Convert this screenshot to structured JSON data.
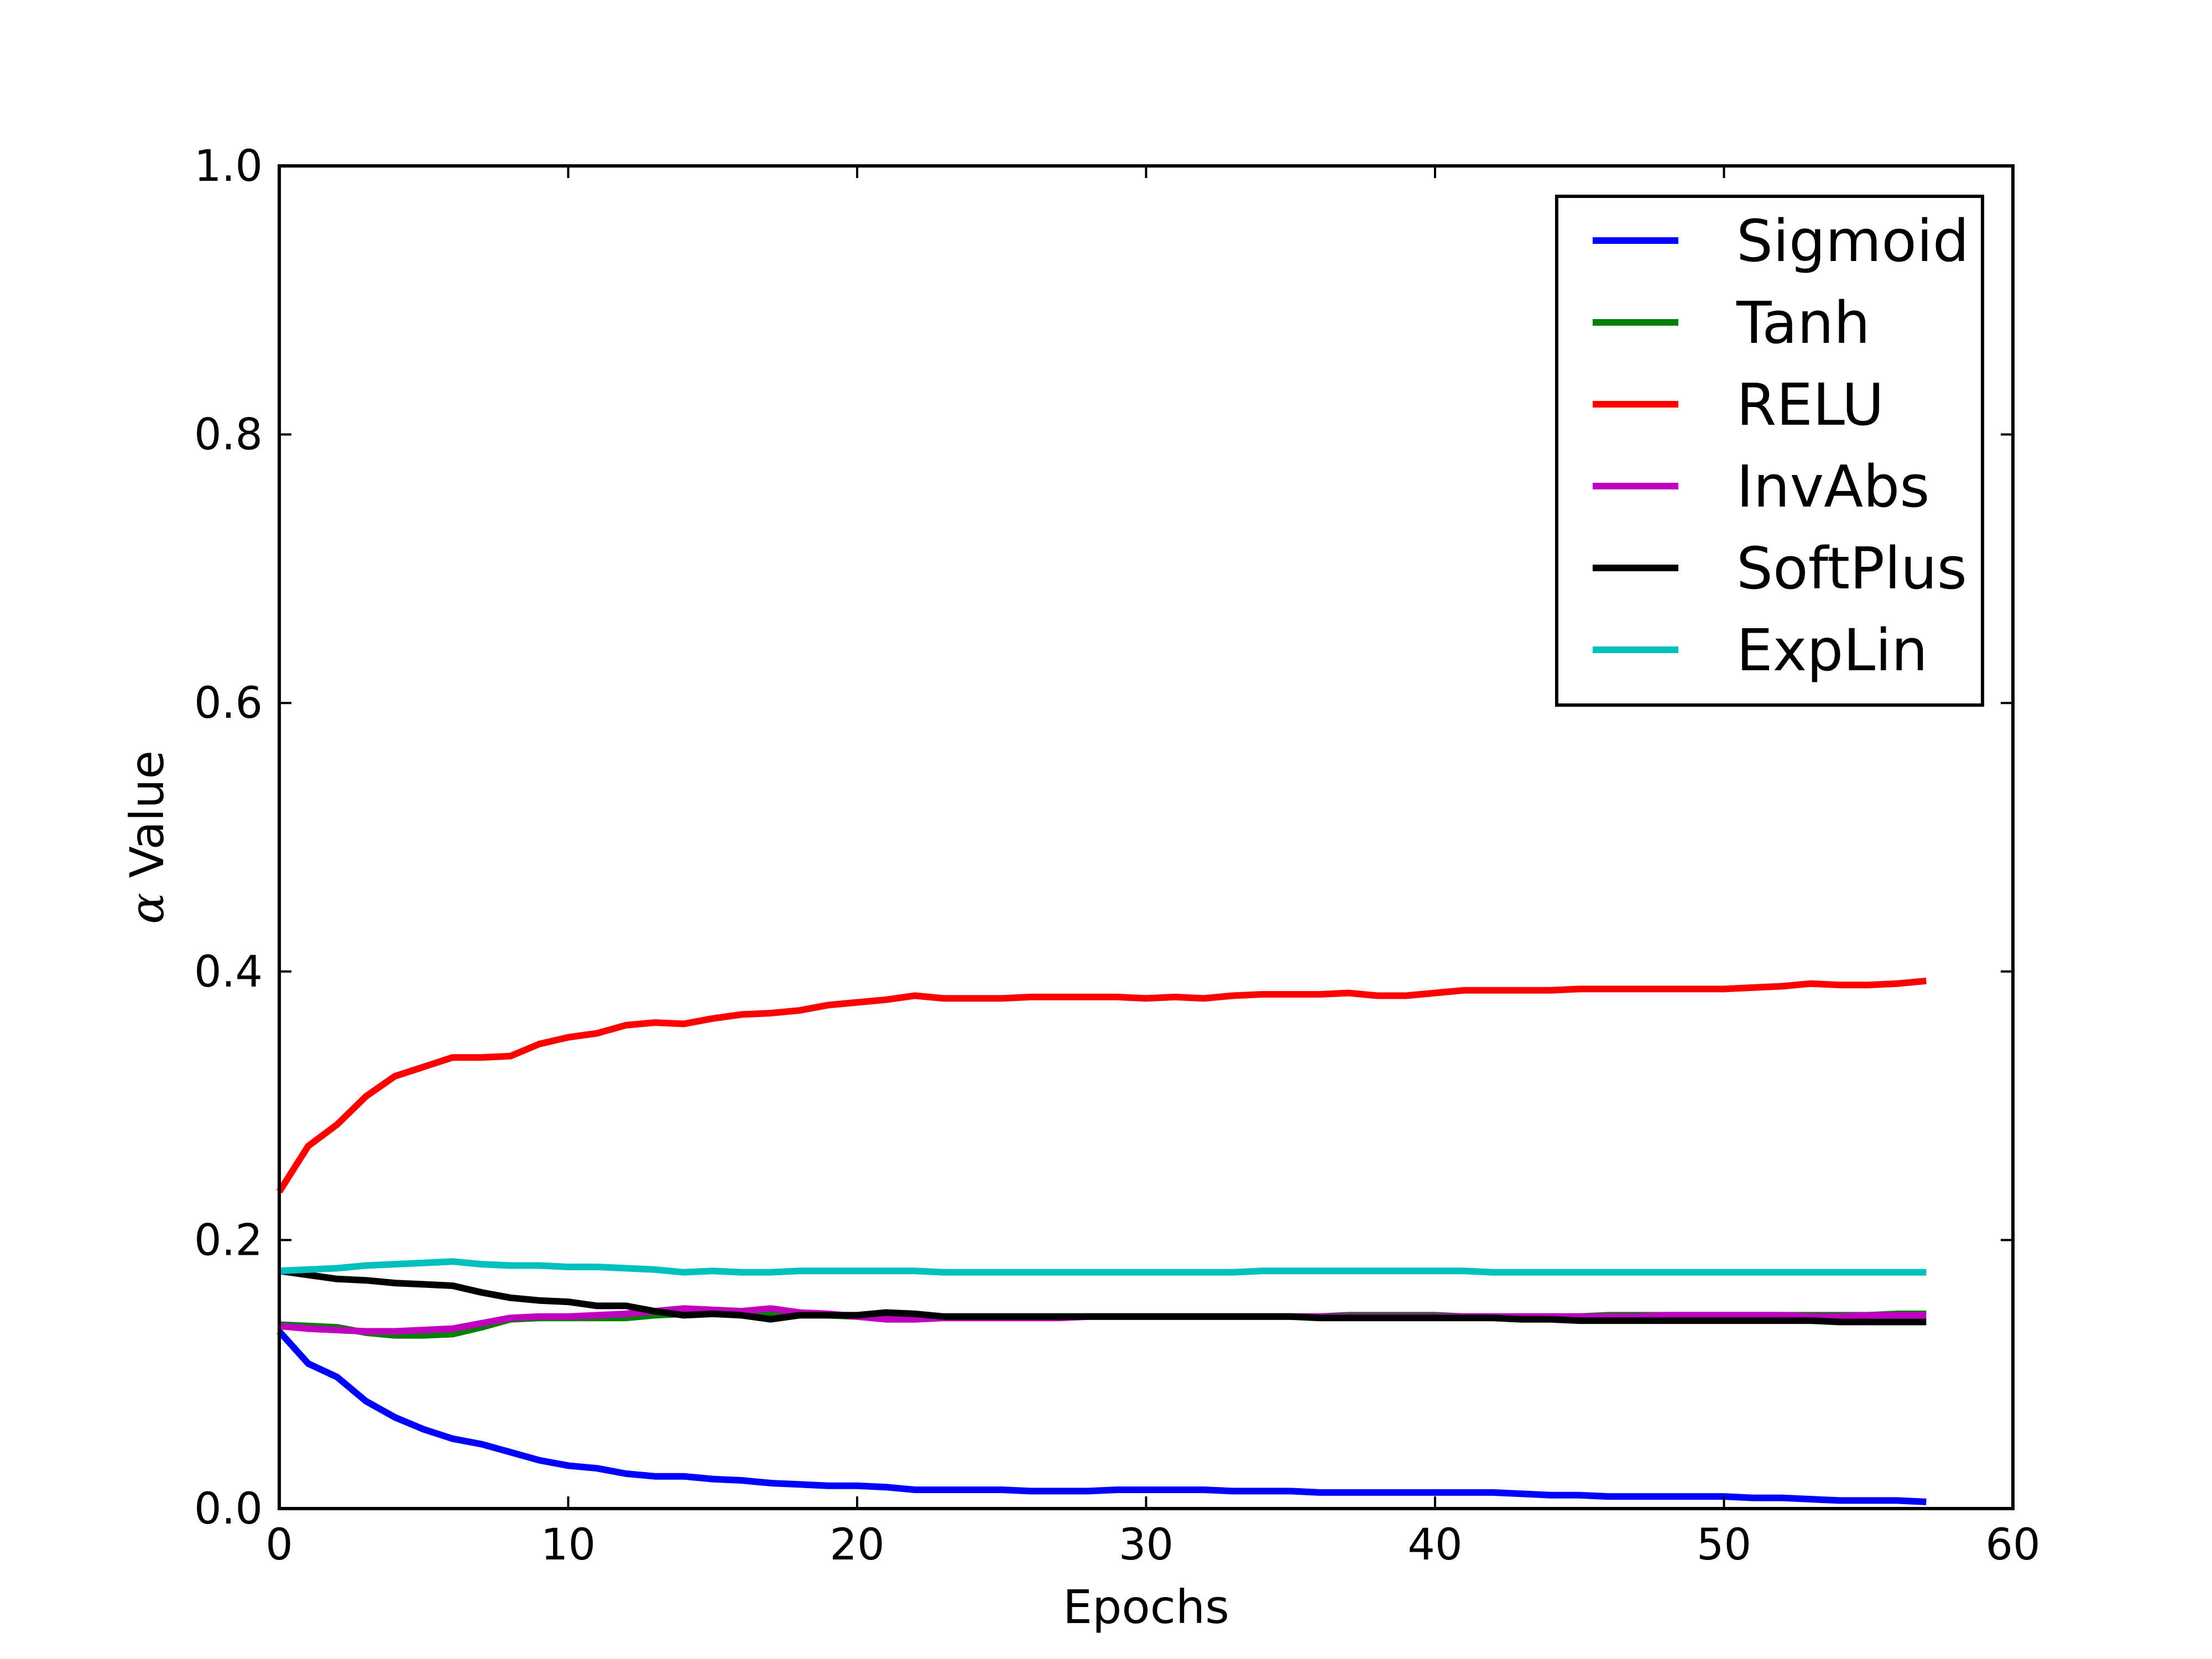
{
  "chart_data": {
    "type": "line",
    "title": "",
    "xlabel": "Epochs",
    "ylabel_symbol": "α",
    "ylabel_text": " Value",
    "xlim": [
      0,
      60
    ],
    "ylim": [
      0.0,
      1.0
    ],
    "xticks": [
      0,
      10,
      20,
      30,
      40,
      50,
      60
    ],
    "xtick_labels": [
      "0",
      "10",
      "20",
      "30",
      "40",
      "50",
      "60"
    ],
    "yticks": [
      0.0,
      0.2,
      0.4,
      0.6,
      0.8,
      1.0
    ],
    "ytick_labels": [
      "0.0",
      "0.2",
      "0.4",
      "0.6",
      "0.8",
      "1.0"
    ],
    "grid": false,
    "legend_position": "top-right",
    "x": [
      0,
      1,
      2,
      3,
      4,
      5,
      6,
      7,
      8,
      9,
      10,
      11,
      12,
      13,
      14,
      15,
      16,
      17,
      18,
      19,
      20,
      21,
      22,
      23,
      24,
      25,
      26,
      27,
      28,
      29,
      30,
      31,
      32,
      33,
      34,
      35,
      36,
      37,
      38,
      39,
      40,
      41,
      42,
      43,
      44,
      45,
      46,
      47,
      48,
      49,
      50,
      51,
      52,
      53,
      54,
      55,
      56,
      57
    ],
    "series": [
      {
        "name": "Sigmoid",
        "color": "#0000ff",
        "values": [
          0.132,
          0.108,
          0.098,
          0.08,
          0.068,
          0.059,
          0.052,
          0.048,
          0.042,
          0.036,
          0.032,
          0.03,
          0.026,
          0.024,
          0.024,
          0.022,
          0.021,
          0.019,
          0.018,
          0.017,
          0.017,
          0.016,
          0.014,
          0.014,
          0.014,
          0.014,
          0.013,
          0.013,
          0.013,
          0.014,
          0.014,
          0.014,
          0.014,
          0.013,
          0.013,
          0.013,
          0.012,
          0.012,
          0.012,
          0.012,
          0.012,
          0.012,
          0.012,
          0.011,
          0.01,
          0.01,
          0.009,
          0.009,
          0.009,
          0.009,
          0.009,
          0.008,
          0.008,
          0.007,
          0.006,
          0.006,
          0.006,
          0.005
        ]
      },
      {
        "name": "Tanh",
        "color": "#008000",
        "values": [
          0.137,
          0.136,
          0.135,
          0.131,
          0.129,
          0.129,
          0.13,
          0.135,
          0.141,
          0.142,
          0.142,
          0.142,
          0.142,
          0.144,
          0.145,
          0.145,
          0.145,
          0.145,
          0.145,
          0.144,
          0.143,
          0.143,
          0.143,
          0.143,
          0.143,
          0.143,
          0.143,
          0.143,
          0.143,
          0.143,
          0.143,
          0.143,
          0.143,
          0.143,
          0.143,
          0.143,
          0.143,
          0.144,
          0.144,
          0.144,
          0.144,
          0.143,
          0.143,
          0.143,
          0.143,
          0.143,
          0.144,
          0.144,
          0.144,
          0.144,
          0.144,
          0.144,
          0.144,
          0.144,
          0.144,
          0.144,
          0.145,
          0.145
        ]
      },
      {
        "name": "RELU",
        "color": "#ff0000",
        "values": [
          0.236,
          0.27,
          0.286,
          0.307,
          0.322,
          0.329,
          0.336,
          0.336,
          0.337,
          0.346,
          0.351,
          0.354,
          0.36,
          0.362,
          0.361,
          0.365,
          0.368,
          0.369,
          0.371,
          0.375,
          0.377,
          0.379,
          0.382,
          0.38,
          0.38,
          0.38,
          0.381,
          0.381,
          0.381,
          0.381,
          0.38,
          0.381,
          0.38,
          0.382,
          0.383,
          0.383,
          0.383,
          0.384,
          0.382,
          0.382,
          0.384,
          0.386,
          0.386,
          0.386,
          0.386,
          0.387,
          0.387,
          0.387,
          0.387,
          0.387,
          0.387,
          0.388,
          0.389,
          0.391,
          0.39,
          0.39,
          0.391,
          0.393
        ]
      },
      {
        "name": "InvAbs",
        "color": "#bf00bf",
        "values": [
          0.136,
          0.134,
          0.133,
          0.132,
          0.132,
          0.133,
          0.134,
          0.138,
          0.142,
          0.143,
          0.143,
          0.144,
          0.145,
          0.147,
          0.149,
          0.148,
          0.147,
          0.149,
          0.146,
          0.145,
          0.143,
          0.141,
          0.141,
          0.142,
          0.142,
          0.142,
          0.142,
          0.142,
          0.143,
          0.143,
          0.143,
          0.143,
          0.143,
          0.143,
          0.143,
          0.143,
          0.143,
          0.143,
          0.143,
          0.143,
          0.143,
          0.143,
          0.143,
          0.143,
          0.143,
          0.143,
          0.143,
          0.143,
          0.144,
          0.144,
          0.144,
          0.144,
          0.144,
          0.143,
          0.143,
          0.144,
          0.144,
          0.144
        ]
      },
      {
        "name": "SoftPlus",
        "color": "#000000",
        "values": [
          0.177,
          0.174,
          0.171,
          0.17,
          0.168,
          0.167,
          0.166,
          0.161,
          0.157,
          0.155,
          0.154,
          0.151,
          0.151,
          0.147,
          0.144,
          0.145,
          0.144,
          0.141,
          0.144,
          0.144,
          0.144,
          0.146,
          0.145,
          0.143,
          0.143,
          0.143,
          0.143,
          0.143,
          0.143,
          0.143,
          0.143,
          0.143,
          0.143,
          0.143,
          0.143,
          0.143,
          0.142,
          0.142,
          0.142,
          0.142,
          0.142,
          0.142,
          0.142,
          0.141,
          0.141,
          0.14,
          0.14,
          0.14,
          0.14,
          0.14,
          0.14,
          0.14,
          0.14,
          0.14,
          0.139,
          0.139,
          0.139,
          0.139
        ]
      },
      {
        "name": "ExpLin",
        "color": "#00bfbf",
        "values": [
          0.177,
          0.178,
          0.179,
          0.181,
          0.182,
          0.183,
          0.184,
          0.182,
          0.181,
          0.181,
          0.18,
          0.18,
          0.179,
          0.178,
          0.176,
          0.177,
          0.176,
          0.176,
          0.177,
          0.177,
          0.177,
          0.177,
          0.177,
          0.176,
          0.176,
          0.176,
          0.176,
          0.176,
          0.176,
          0.176,
          0.176,
          0.176,
          0.176,
          0.176,
          0.177,
          0.177,
          0.177,
          0.177,
          0.177,
          0.177,
          0.177,
          0.177,
          0.176,
          0.176,
          0.176,
          0.176,
          0.176,
          0.176,
          0.176,
          0.176,
          0.176,
          0.176,
          0.176,
          0.176,
          0.176,
          0.176,
          0.176,
          0.176
        ]
      }
    ]
  }
}
